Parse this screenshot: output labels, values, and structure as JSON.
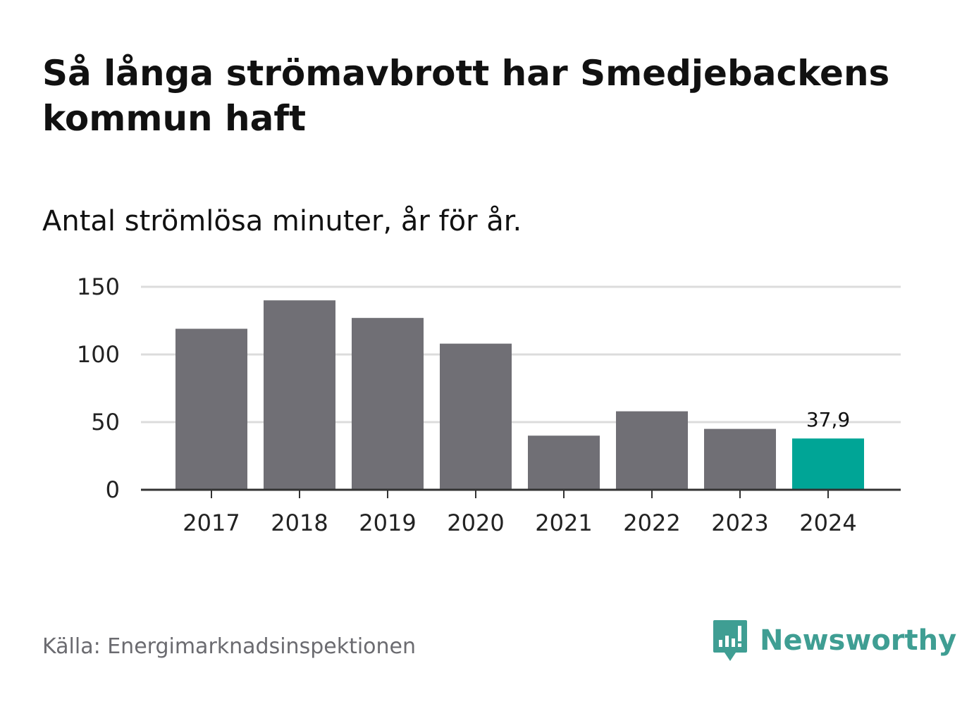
{
  "header": {
    "title": "Så långa strömavbrott har Smedjebackens kommun haft",
    "subtitle": "Antal strömlösa minuter, år för år."
  },
  "footer": {
    "source": "Källa: Energimarknadsinspektionen",
    "brand": "Newsworthy",
    "brand_icon": "bar-chart-speech-bubble-icon"
  },
  "colors": {
    "bar": "#706f75",
    "highlight": "#00a596",
    "grid": "#dcdcdc",
    "axis": "#333333",
    "brand": "#3f9e93"
  },
  "chart_data": {
    "type": "bar",
    "title": "Så långa strömavbrott har Smedjebackens kommun haft",
    "subtitle": "Antal strömlösa minuter, år för år.",
    "categories": [
      "2017",
      "2018",
      "2019",
      "2020",
      "2021",
      "2022",
      "2023",
      "2024"
    ],
    "values": [
      119,
      140,
      127,
      108,
      40,
      58,
      45,
      37.9
    ],
    "highlight_index": 7,
    "data_labels": [
      {
        "index": 7,
        "text": "37,9"
      }
    ],
    "yticks": [
      0,
      50,
      100,
      150
    ],
    "ytick_labels": [
      "0",
      "50",
      "100",
      "150"
    ],
    "ylim": [
      0,
      150
    ],
    "xlabel": "",
    "ylabel": "",
    "grid": true
  }
}
